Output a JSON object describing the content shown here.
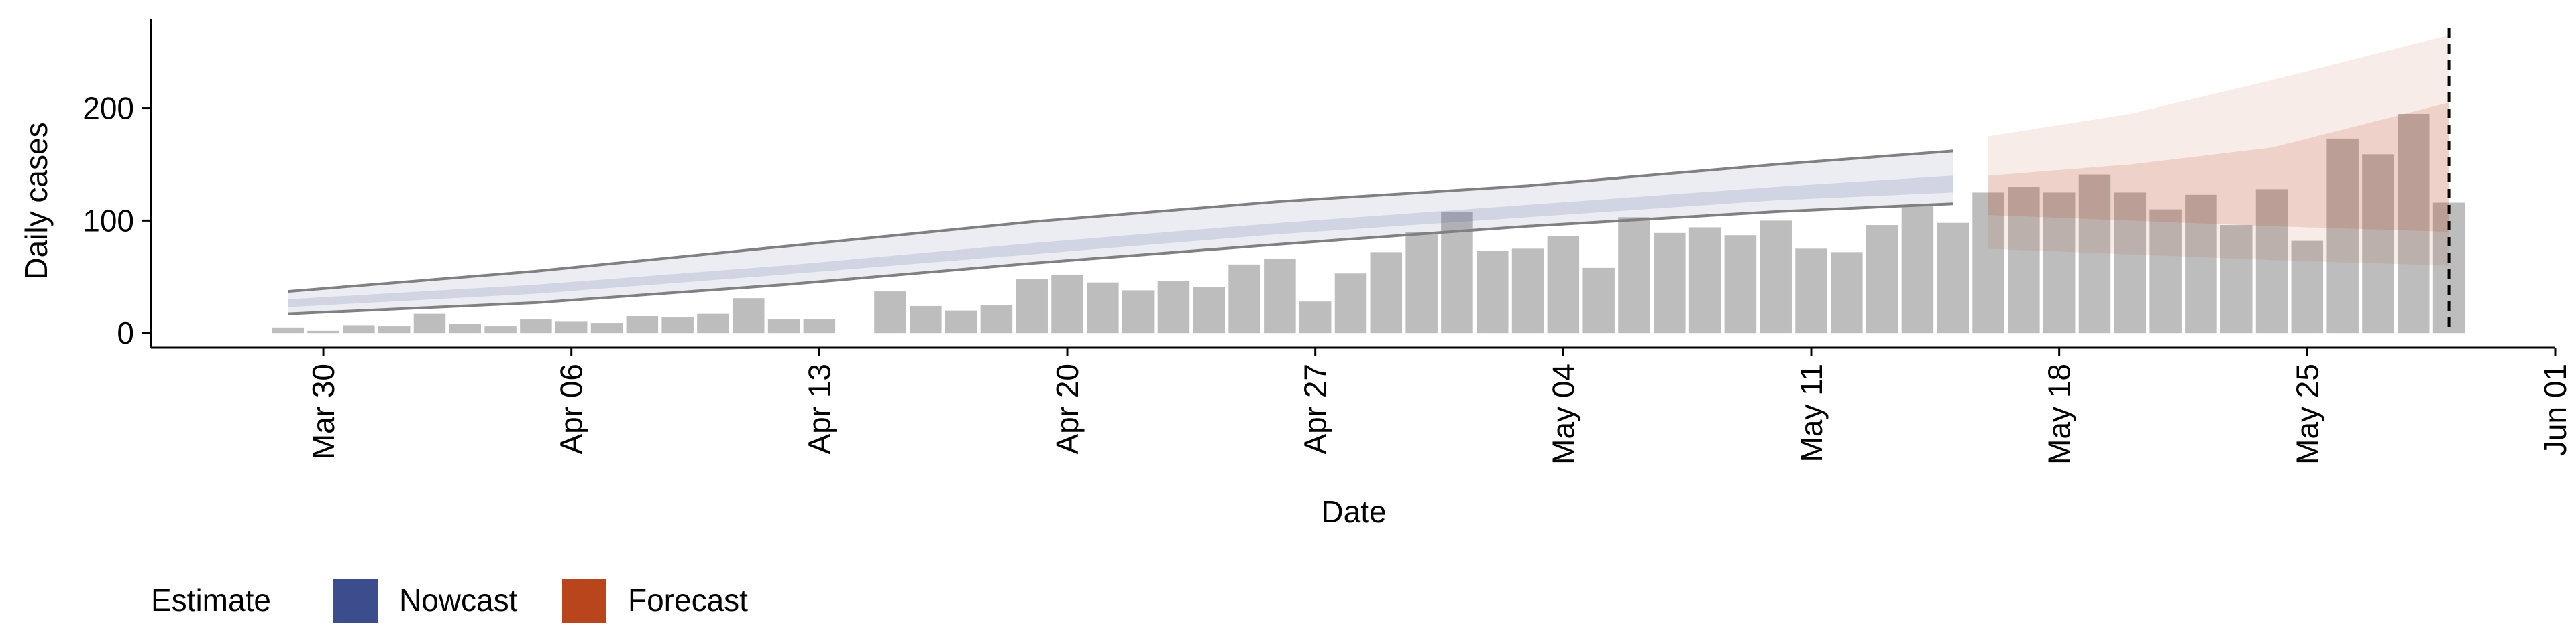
{
  "chart_data": {
    "type": "bar",
    "ylabel": "Daily cases",
    "xlabel": "Date",
    "x": [
      "Mar 29",
      "Mar 30",
      "Mar 31",
      "Apr 01",
      "Apr 02",
      "Apr 03",
      "Apr 04",
      "Apr 05",
      "Apr 06",
      "Apr 07",
      "Apr 08",
      "Apr 09",
      "Apr 10",
      "Apr 11",
      "Apr 12",
      "Apr 13",
      "Apr 14",
      "Apr 15",
      "Apr 16",
      "Apr 17",
      "Apr 18",
      "Apr 19",
      "Apr 20",
      "Apr 21",
      "Apr 22",
      "Apr 23",
      "Apr 24",
      "Apr 25",
      "Apr 26",
      "Apr 27",
      "Apr 28",
      "Apr 29",
      "Apr 30",
      "May 01",
      "May 02",
      "May 03",
      "May 04",
      "May 05",
      "May 06",
      "May 07",
      "May 08",
      "May 09",
      "May 10",
      "May 11",
      "May 12",
      "May 13",
      "May 14",
      "May 15",
      "May 16",
      "May 17",
      "May 18",
      "May 19",
      "May 20",
      "May 21",
      "May 22",
      "May 23",
      "May 24",
      "May 25",
      "May 26",
      "May 27",
      "May 28",
      "May 29"
    ],
    "values": [
      5,
      2,
      7,
      6,
      17,
      8,
      6,
      12,
      10,
      9,
      15,
      14,
      17,
      31,
      12,
      12,
      null,
      37,
      24,
      20,
      25,
      48,
      52,
      45,
      38,
      46,
      41,
      61,
      66,
      28,
      53,
      72,
      90,
      108,
      73,
      75,
      86,
      58,
      103,
      89,
      94,
      87,
      100,
      75,
      72,
      96,
      113,
      98,
      125,
      130,
      125,
      141,
      125,
      110,
      123,
      96,
      128,
      82,
      173,
      159,
      195,
      116
    ],
    "color": "#bdbdbd",
    "bands": [
      {
        "name": "Nowcast",
        "color": "#3b4d8c",
        "x": [
          "Mar 29",
          "Apr 05",
          "Apr 12",
          "Apr 19",
          "Apr 26",
          "May 03",
          "May 10",
          "May 15"
        ],
        "lower90": [
          17,
          27,
          43,
          62,
          79,
          95,
          108,
          115
        ],
        "upper90": [
          37,
          55,
          77,
          99,
          117,
          131,
          150,
          162
        ],
        "lower50": [
          23,
          35,
          52,
          70,
          88,
          103,
          118,
          125
        ],
        "upper50": [
          30,
          43,
          60,
          80,
          98,
          114,
          130,
          140
        ]
      },
      {
        "name": "Forecast",
        "color": "#b8451c",
        "x": [
          "May 16",
          "May 20",
          "May 24",
          "May 29"
        ],
        "lower90": [
          75,
          70,
          65,
          60
        ],
        "upper90": [
          175,
          195,
          225,
          265
        ],
        "lower50": [
          105,
          100,
          95,
          90
        ],
        "upper50": [
          140,
          150,
          165,
          205
        ]
      }
    ],
    "legend_title": "Estimate",
    "vline": "May 29",
    "xlim": [
      "Mar 25",
      "Jun 01"
    ],
    "xticks": [
      "Mar 30",
      "Apr 06",
      "Apr 13",
      "Apr 20",
      "Apr 27",
      "May 04",
      "May 11",
      "May 18",
      "May 25",
      "Jun 01"
    ],
    "ylim": [
      -13,
      279
    ],
    "yticks": [
      0,
      100,
      200
    ]
  }
}
